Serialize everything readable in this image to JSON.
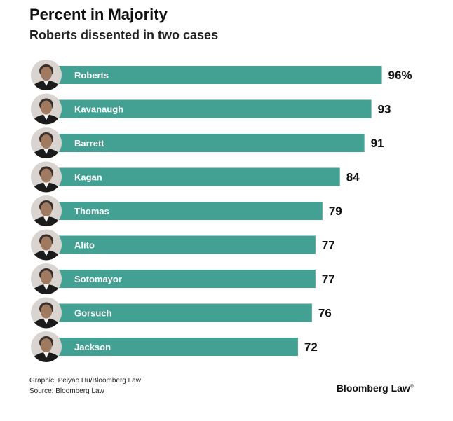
{
  "header": {
    "title": "Percent in Majority",
    "subtitle": "Roberts dissented in two cases"
  },
  "footer": {
    "graphic_credit": "Graphic: Peiyao Hu/Bloomberg Law",
    "source": "Source: Bloomberg Law",
    "brand": "Bloomberg Law",
    "brand_mark": "®"
  },
  "colors": {
    "bar": "#43a193",
    "robe": "#1b1b1b",
    "skin": "#a07a60",
    "hair": "#3a2e2a"
  },
  "chart_data": {
    "type": "bar",
    "orientation": "horizontal",
    "title": "Percent in Majority",
    "subtitle": "Roberts dissented in two cases",
    "xlabel": "",
    "ylabel": "",
    "xlim": [
      0,
      100
    ],
    "unit": "%",
    "grid": false,
    "categories": [
      "Roberts",
      "Kavanaugh",
      "Barrett",
      "Kagan",
      "Thomas",
      "Alito",
      "Sotomayor",
      "Gorsuch",
      "Jackson"
    ],
    "values": [
      96,
      93,
      91,
      84,
      79,
      77,
      77,
      76,
      72
    ],
    "value_labels": [
      "96%",
      "93",
      "91",
      "84",
      "79",
      "77",
      "77",
      "76",
      "72"
    ]
  }
}
